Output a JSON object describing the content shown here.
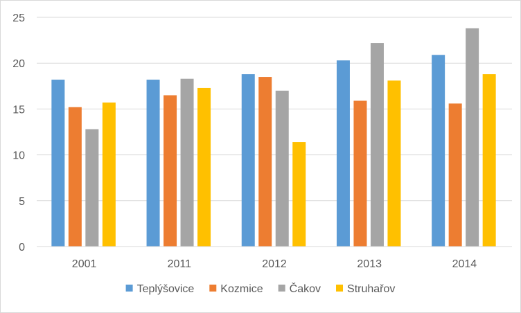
{
  "chart_data": {
    "type": "bar",
    "title": "",
    "xlabel": "",
    "ylabel": "",
    "categories": [
      "2001",
      "2011",
      "2012",
      "2013",
      "2014"
    ],
    "series": [
      {
        "name": "Teplýšovice",
        "color": "#5b9bd5",
        "values": [
          18.2,
          18.2,
          18.8,
          20.3,
          20.9
        ]
      },
      {
        "name": "Kozmice",
        "color": "#ed7d31",
        "values": [
          15.2,
          16.5,
          18.5,
          15.9,
          15.6
        ]
      },
      {
        "name": "Čakov",
        "color": "#a5a5a5",
        "values": [
          12.8,
          18.3,
          17.0,
          22.2,
          23.8
        ]
      },
      {
        "name": "Struhařov",
        "color": "#ffc000",
        "values": [
          15.7,
          17.3,
          11.4,
          18.1,
          18.8
        ]
      }
    ],
    "ylim": [
      0,
      25
    ],
    "yticks": [
      0,
      5,
      10,
      15,
      20,
      25
    ],
    "grid": true,
    "legend_position": "bottom"
  }
}
